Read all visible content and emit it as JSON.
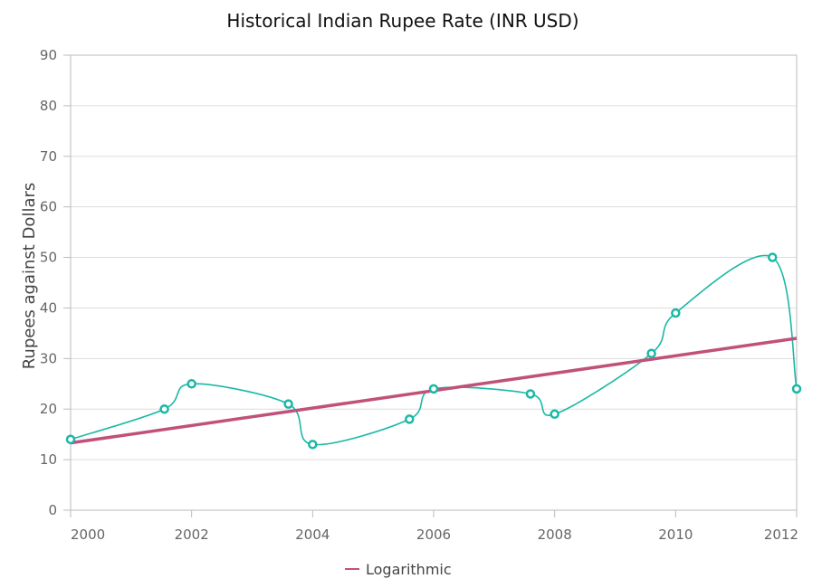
{
  "colors": {
    "series": "#1ab8a6",
    "trendline": "#c0527a",
    "grid": "#dddddd",
    "axis": "#bbbbbb"
  },
  "chart_data": {
    "type": "line",
    "title": "Historical Indian Rupee Rate (INR USD)",
    "xlabel": "",
    "ylabel": "Rupees against Dollars",
    "xlim": [
      2000,
      2012
    ],
    "ylim": [
      0,
      90
    ],
    "x_ticks": [
      "2000",
      "2002",
      "2004",
      "2006",
      "2008",
      "2010",
      "2012"
    ],
    "y_ticks": [
      "0",
      "10",
      "20",
      "30",
      "40",
      "50",
      "60",
      "70",
      "80",
      "90"
    ],
    "grid": true,
    "legend_position": "bottom",
    "series": [
      {
        "marker": "circle",
        "interpolation": "spline",
        "points": [
          {
            "x": 2000.0,
            "y": 14
          },
          {
            "x": 2001.55,
            "y": 20
          },
          {
            "x": 2002.0,
            "y": 25
          },
          {
            "x": 2003.6,
            "y": 21
          },
          {
            "x": 2004.0,
            "y": 13
          },
          {
            "x": 2005.6,
            "y": 18
          },
          {
            "x": 2006.0,
            "y": 24
          },
          {
            "x": 2007.6,
            "y": 23
          },
          {
            "x": 2008.0,
            "y": 19
          },
          {
            "x": 2009.6,
            "y": 31
          },
          {
            "x": 2010.0,
            "y": 39
          },
          {
            "x": 2011.6,
            "y": 50
          },
          {
            "x": 2012.0,
            "y": 24
          }
        ]
      }
    ],
    "trendline": {
      "name": "Logarithmic",
      "type": "logarithmic",
      "points": [
        {
          "x": 2000,
          "y": 13.3
        },
        {
          "x": 2012,
          "y": 34.0
        }
      ]
    }
  }
}
